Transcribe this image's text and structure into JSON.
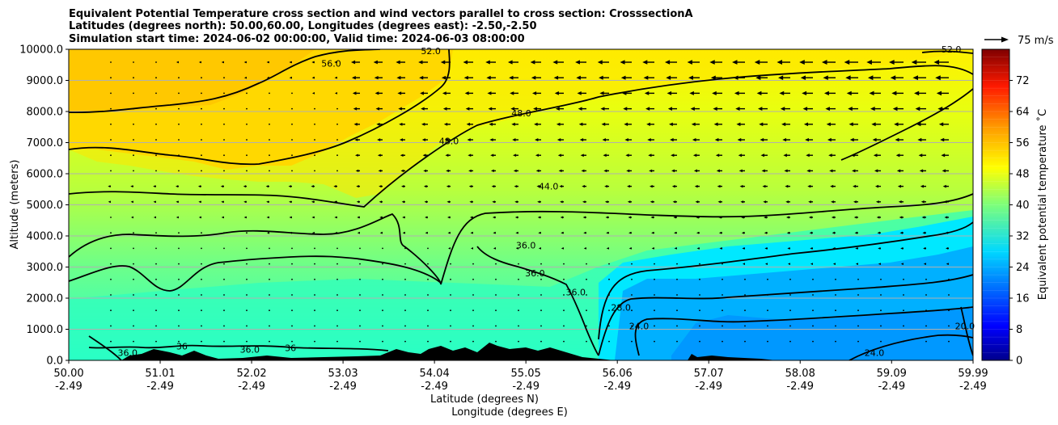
{
  "chart_data": {
    "type": "contourf",
    "title": [
      "Equivalent Potential Temperature cross section and wind vectors parallel to cross section: CrosssectionA",
      "Latitudes (degrees north): 50.00,60.00, Longitudes (degrees east): -2.50,-2.50",
      "Simulation start time: 2024-06-02 00:00:00, Valid time: 2024-06-03 08:00:00"
    ],
    "xlabel": "Latitude (degrees N)",
    "xlabel2": "Longitude (degrees E)",
    "ylabel": "Altitude (meters)",
    "xlim": [
      50.0,
      59.99
    ],
    "ylim": [
      0,
      10000
    ],
    "x_ticks": [
      {
        "lat": "50.00",
        "lon": "-2.49",
        "value": 50.0
      },
      {
        "lat": "51.01",
        "lon": "-2.49",
        "value": 51.01
      },
      {
        "lat": "52.02",
        "lon": "-2.49",
        "value": 52.02
      },
      {
        "lat": "53.03",
        "lon": "-2.49",
        "value": 53.03
      },
      {
        "lat": "54.04",
        "lon": "-2.49",
        "value": 54.04
      },
      {
        "lat": "55.05",
        "lon": "-2.49",
        "value": 55.05
      },
      {
        "lat": "56.06",
        "lon": "-2.49",
        "value": 56.06
      },
      {
        "lat": "57.07",
        "lon": "-2.49",
        "value": 57.07
      },
      {
        "lat": "58.08",
        "lon": "-2.49",
        "value": 58.08
      },
      {
        "lat": "59.09",
        "lon": "-2.49",
        "value": 59.09
      },
      {
        "lat": "59.99",
        "lon": "-2.49",
        "value": 59.99
      }
    ],
    "y_ticks": [
      {
        "label": "0.0",
        "value": 0
      },
      {
        "label": "1000.0",
        "value": 1000
      },
      {
        "label": "2000.0",
        "value": 2000
      },
      {
        "label": "3000.0",
        "value": 3000
      },
      {
        "label": "4000.0",
        "value": 4000
      },
      {
        "label": "5000.0",
        "value": 5000
      },
      {
        "label": "6000.0",
        "value": 6000
      },
      {
        "label": "7000.0",
        "value": 7000
      },
      {
        "label": "8000.0",
        "value": 8000
      },
      {
        "label": "9000.0",
        "value": 9000
      },
      {
        "label": "10000.0",
        "value": 10000
      }
    ],
    "grid": "horizontal",
    "colorbar": {
      "label": "Equivalent potential temperature ˚C",
      "range": [
        0,
        80
      ],
      "ticks": [
        "0",
        "8",
        "16",
        "24",
        "32",
        "40",
        "48",
        "56",
        "64",
        "72"
      ],
      "tick_values": [
        0,
        8,
        16,
        24,
        32,
        40,
        48,
        56,
        64,
        72
      ],
      "colormap": "jet"
    },
    "quiver_key": {
      "label": "75 m/s",
      "value": 75
    },
    "contour_labels": [
      {
        "text": "56.0",
        "lat": 52.9,
        "alt": 9550
      },
      {
        "text": "52.0",
        "lat": 54.0,
        "alt": 9950
      },
      {
        "text": "52.0",
        "lat": 59.75,
        "alt": 10000
      },
      {
        "text": "48.0",
        "lat": 54.2,
        "alt": 7050
      },
      {
        "text": "48.0",
        "lat": 55.0,
        "alt": 7950
      },
      {
        "text": "44.0",
        "lat": 55.3,
        "alt": 5600
      },
      {
        "text": "36.0",
        "lat": 55.05,
        "alt": 3700
      },
      {
        "text": "36.0",
        "lat": 55.15,
        "alt": 2800
      },
      {
        "text": "36.0",
        "lat": 55.6,
        "alt": 2200
      },
      {
        "text": "36.0",
        "lat": 50.65,
        "alt": 250
      },
      {
        "text": "36",
        "lat": 51.25,
        "alt": 450
      },
      {
        "text": "36.0",
        "lat": 52.0,
        "alt": 350
      },
      {
        "text": "36",
        "lat": 52.45,
        "alt": 400
      },
      {
        "text": "28.0",
        "lat": 56.1,
        "alt": 1700
      },
      {
        "text": "24.0",
        "lat": 56.3,
        "alt": 1100
      },
      {
        "text": "24.0",
        "lat": 58.9,
        "alt": 250
      },
      {
        "text": "20.0",
        "lat": 59.9,
        "alt": 1100
      }
    ]
  }
}
